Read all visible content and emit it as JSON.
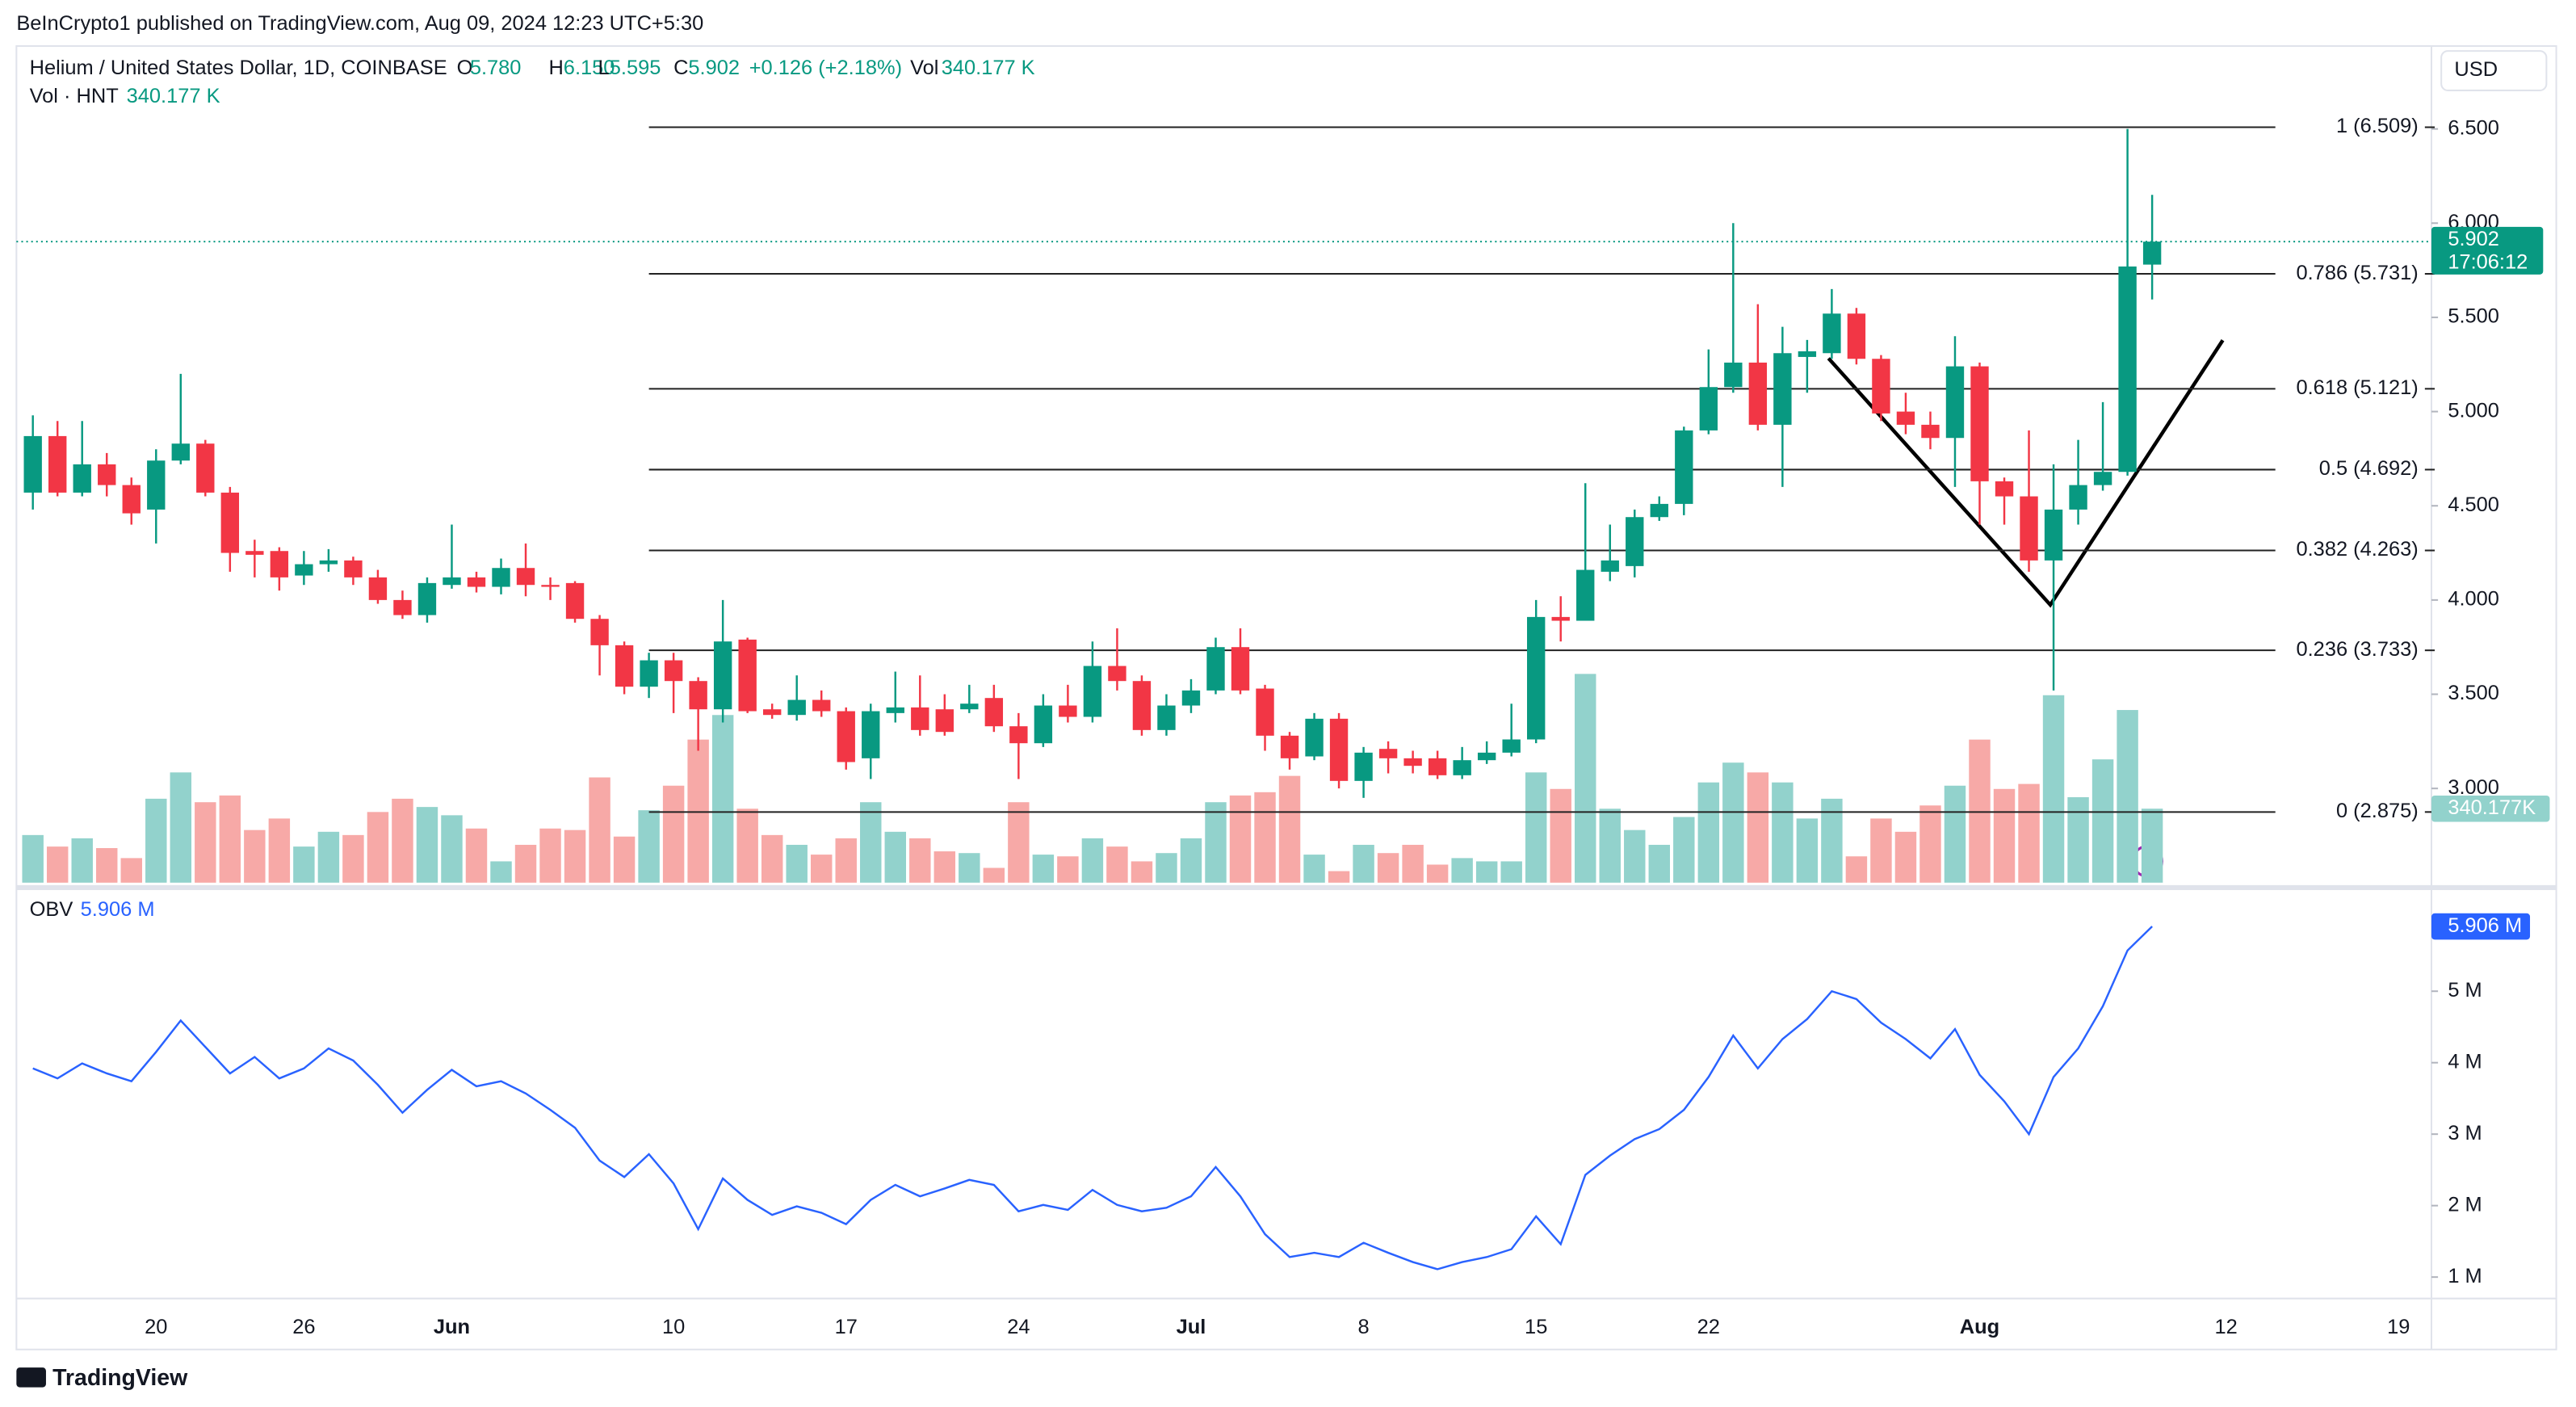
{
  "header": {
    "published": "BeInCrypto1 published on TradingView.com, Aug 09, 2024 12:23 UTC+5:30",
    "symbol": "Helium / United States Dollar, 1D, COINBASE",
    "ohlc": [
      [
        "O",
        "5.780"
      ],
      [
        "H",
        "6.150"
      ],
      [
        "L",
        "5.595"
      ],
      [
        "C",
        "5.902"
      ]
    ],
    "change": "+0.126 (+2.18%)",
    "vol_label": "Vol",
    "vol_value": "340.177 K",
    "vol_study": "Vol · HNT",
    "vol_study_value": "340.177 K",
    "currency": "USD",
    "brand": "TradingView"
  },
  "chart_data": [
    {
      "type": "candlestick",
      "up_color": "#089981",
      "down_color": "#f23645",
      "volume_up_color": "#92d2cc",
      "volume_down_color": "#f7a9a7",
      "categories": [
        null,
        null,
        null,
        null,
        null,
        "20",
        null,
        null,
        null,
        null,
        null,
        "26",
        null,
        null,
        null,
        null,
        null,
        "Jun",
        null,
        null,
        null,
        null,
        null,
        null,
        null,
        null,
        "10",
        null,
        null,
        null,
        null,
        null,
        null,
        "17",
        null,
        null,
        null,
        null,
        null,
        null,
        "24",
        null,
        null,
        null,
        null,
        null,
        null,
        "Jul",
        null,
        null,
        null,
        null,
        null,
        null,
        "8",
        null,
        null,
        null,
        null,
        null,
        null,
        "15",
        null,
        null,
        null,
        null,
        null,
        null,
        "22",
        null,
        null,
        null,
        null,
        null,
        null,
        null,
        null,
        null,
        null,
        "Aug",
        null,
        null,
        null,
        null,
        null,
        null,
        null
      ],
      "future_xticks": [
        "12",
        "19"
      ],
      "open": [
        4.57,
        4.87,
        4.57,
        4.72,
        4.61,
        4.48,
        4.74,
        4.83,
        4.57,
        4.26,
        4.26,
        4.13,
        4.19,
        4.21,
        4.12,
        4.0,
        3.92,
        4.08,
        4.12,
        4.07,
        4.17,
        4.08,
        4.09,
        3.9,
        3.76,
        3.54,
        3.68,
        3.57,
        3.42,
        3.79,
        3.42,
        3.39,
        3.47,
        3.41,
        3.16,
        3.4,
        3.43,
        3.42,
        3.42,
        3.48,
        3.33,
        3.24,
        3.44,
        3.38,
        3.65,
        3.57,
        3.31,
        3.44,
        3.52,
        3.75,
        3.53,
        3.28,
        3.17,
        3.37,
        3.04,
        3.21,
        3.16,
        3.16,
        3.07,
        3.15,
        3.19,
        3.26,
        3.91,
        3.89,
        4.15,
        4.18,
        4.44,
        4.51,
        4.9,
        5.13,
        5.26,
        4.93,
        5.29,
        5.31,
        5.52,
        5.28,
        5.0,
        4.93,
        4.86,
        5.24,
        4.63,
        4.55,
        4.21,
        4.48,
        4.61,
        4.68,
        5.78
      ],
      "high": [
        4.98,
        4.95,
        4.95,
        4.78,
        4.65,
        4.8,
        5.2,
        4.85,
        4.6,
        4.32,
        4.28,
        4.26,
        4.27,
        4.23,
        4.16,
        4.05,
        4.12,
        4.4,
        4.15,
        4.22,
        4.3,
        4.12,
        4.1,
        3.92,
        3.78,
        3.72,
        3.72,
        3.59,
        4.0,
        3.8,
        3.45,
        3.6,
        3.52,
        3.43,
        3.45,
        3.62,
        3.6,
        3.5,
        3.55,
        3.55,
        3.4,
        3.5,
        3.55,
        3.78,
        3.85,
        3.6,
        3.5,
        3.58,
        3.8,
        3.85,
        3.55,
        3.3,
        3.4,
        3.4,
        3.22,
        3.25,
        3.2,
        3.2,
        3.22,
        3.25,
        3.45,
        4.0,
        4.02,
        4.62,
        4.4,
        4.48,
        4.55,
        4.92,
        5.33,
        6.0,
        5.57,
        5.45,
        5.38,
        5.65,
        5.55,
        5.3,
        5.1,
        5.0,
        5.4,
        5.26,
        4.65,
        4.9,
        4.72,
        4.85,
        5.05,
        6.5,
        6.15
      ],
      "low": [
        4.48,
        4.55,
        4.55,
        4.55,
        4.4,
        4.3,
        4.72,
        4.55,
        4.15,
        4.12,
        4.05,
        4.08,
        4.15,
        4.08,
        3.98,
        3.9,
        3.88,
        4.06,
        4.04,
        4.03,
        4.02,
        4.0,
        3.88,
        3.6,
        3.5,
        3.48,
        3.4,
        3.2,
        3.35,
        3.4,
        3.37,
        3.36,
        3.38,
        3.1,
        3.05,
        3.35,
        3.28,
        3.28,
        3.4,
        3.3,
        3.05,
        3.22,
        3.35,
        3.35,
        3.52,
        3.28,
        3.28,
        3.4,
        3.5,
        3.5,
        3.2,
        3.1,
        3.15,
        3.0,
        2.95,
        3.08,
        3.08,
        3.05,
        3.05,
        3.13,
        3.17,
        3.24,
        3.78,
        3.89,
        4.1,
        4.12,
        4.42,
        4.45,
        4.88,
        5.1,
        4.9,
        4.6,
        5.1,
        5.28,
        5.25,
        4.95,
        4.88,
        4.8,
        4.6,
        4.4,
        4.4,
        4.15,
        3.52,
        4.4,
        4.58,
        4.66,
        5.595
      ],
      "close": [
        4.87,
        4.57,
        4.72,
        4.61,
        4.46,
        4.74,
        4.83,
        4.57,
        4.25,
        4.24,
        4.12,
        4.19,
        4.21,
        4.12,
        4.0,
        3.92,
        4.09,
        4.12,
        4.07,
        4.17,
        4.08,
        4.07,
        3.9,
        3.76,
        3.54,
        3.68,
        3.57,
        3.42,
        3.78,
        3.41,
        3.39,
        3.47,
        3.41,
        3.14,
        3.41,
        3.43,
        3.31,
        3.3,
        3.45,
        3.33,
        3.24,
        3.44,
        3.38,
        3.65,
        3.57,
        3.31,
        3.44,
        3.52,
        3.75,
        3.52,
        3.28,
        3.16,
        3.37,
        3.04,
        3.19,
        3.16,
        3.12,
        3.07,
        3.15,
        3.19,
        3.26,
        3.91,
        3.89,
        4.16,
        4.21,
        4.44,
        4.51,
        4.9,
        5.13,
        5.26,
        4.93,
        5.31,
        5.32,
        5.52,
        5.28,
        4.99,
        4.93,
        4.86,
        5.24,
        4.63,
        4.55,
        4.21,
        4.48,
        4.61,
        4.68,
        5.77,
        5.902
      ],
      "volume": [
        219,
        166,
        204,
        159,
        113,
        386,
        507,
        370,
        401,
        242,
        295,
        166,
        234,
        219,
        325,
        386,
        348,
        310,
        249,
        98,
        174,
        249,
        242,
        484,
        212,
        333,
        446,
        658,
        771,
        340,
        219,
        174,
        129,
        204,
        370,
        234,
        204,
        144,
        136,
        68,
        370,
        129,
        121,
        204,
        166,
        98,
        136,
        204,
        370,
        401,
        416,
        491,
        129,
        53,
        174,
        136,
        174,
        83,
        113,
        98,
        98,
        507,
        431,
        960,
        340,
        242,
        174,
        302,
        461,
        552,
        507,
        461,
        295,
        386,
        121,
        295,
        234,
        355,
        446,
        658,
        431,
        454,
        862,
        393,
        567,
        794,
        340.177
      ],
      "ylim": [
        2.5,
        6.94
      ],
      "yticks": [
        {
          "value": 3,
          "label": "3.000"
        },
        {
          "value": 3.5,
          "label": "3.500"
        },
        {
          "value": 4,
          "label": "4.000"
        },
        {
          "value": 4.5,
          "label": "4.500"
        },
        {
          "value": 5,
          "label": "5.000"
        },
        {
          "value": 5.5,
          "label": "5.500"
        },
        {
          "value": 6,
          "label": "6.000"
        },
        {
          "value": 6.5,
          "label": "6.500"
        }
      ],
      "fib_levels": [
        {
          "value": 6.509,
          "label": "1 (6.509)"
        },
        {
          "value": 5.731,
          "label": "0.786 (5.731)"
        },
        {
          "value": 5.121,
          "label": "0.618 (5.121)"
        },
        {
          "value": 4.692,
          "label": "0.5 (4.692)"
        },
        {
          "value": 4.263,
          "label": "0.382 (4.263)"
        },
        {
          "value": 3.733,
          "label": "0.236 (3.733)"
        },
        {
          "value": 2.875,
          "label": "0 (2.875)"
        }
      ],
      "countdown": "17:06:12",
      "volume_badge": "340.177K"
    },
    {
      "type": "line",
      "title": "OBV",
      "title_value": "5.906 M",
      "badge": "5.906 M",
      "color": "#2962ff",
      "values": [
        3.92,
        3.78,
        3.99,
        3.85,
        3.74,
        4.15,
        4.59,
        4.22,
        3.85,
        4.08,
        3.78,
        3.92,
        4.2,
        4.03,
        3.69,
        3.3,
        3.62,
        3.9,
        3.67,
        3.74,
        3.57,
        3.34,
        3.09,
        2.63,
        2.4,
        2.72,
        2.31,
        1.67,
        2.38,
        2.08,
        1.87,
        1.99,
        1.9,
        1.74,
        2.08,
        2.29,
        2.13,
        2.24,
        2.36,
        2.29,
        1.92,
        2.01,
        1.94,
        2.22,
        2.01,
        1.92,
        1.97,
        2.13,
        2.54,
        2.13,
        1.6,
        1.28,
        1.34,
        1.28,
        1.48,
        1.34,
        1.21,
        1.11,
        1.21,
        1.28,
        1.39,
        1.85,
        1.46,
        2.43,
        2.7,
        2.93,
        3.07,
        3.34,
        3.8,
        4.38,
        3.92,
        4.33,
        4.61,
        5.0,
        4.89,
        4.56,
        4.33,
        4.06,
        4.47,
        3.83,
        3.46,
        3.0,
        3.8,
        4.2,
        4.79,
        5.57,
        5.906
      ],
      "ylim": [
        0.7,
        6.45
      ],
      "yticks": [
        {
          "value": 1,
          "label": "1 M"
        },
        {
          "value": 2,
          "label": "2 M"
        },
        {
          "value": 3,
          "label": "3 M"
        },
        {
          "value": 4,
          "label": "4 M"
        },
        {
          "value": 5,
          "label": "5 M"
        }
      ]
    }
  ]
}
